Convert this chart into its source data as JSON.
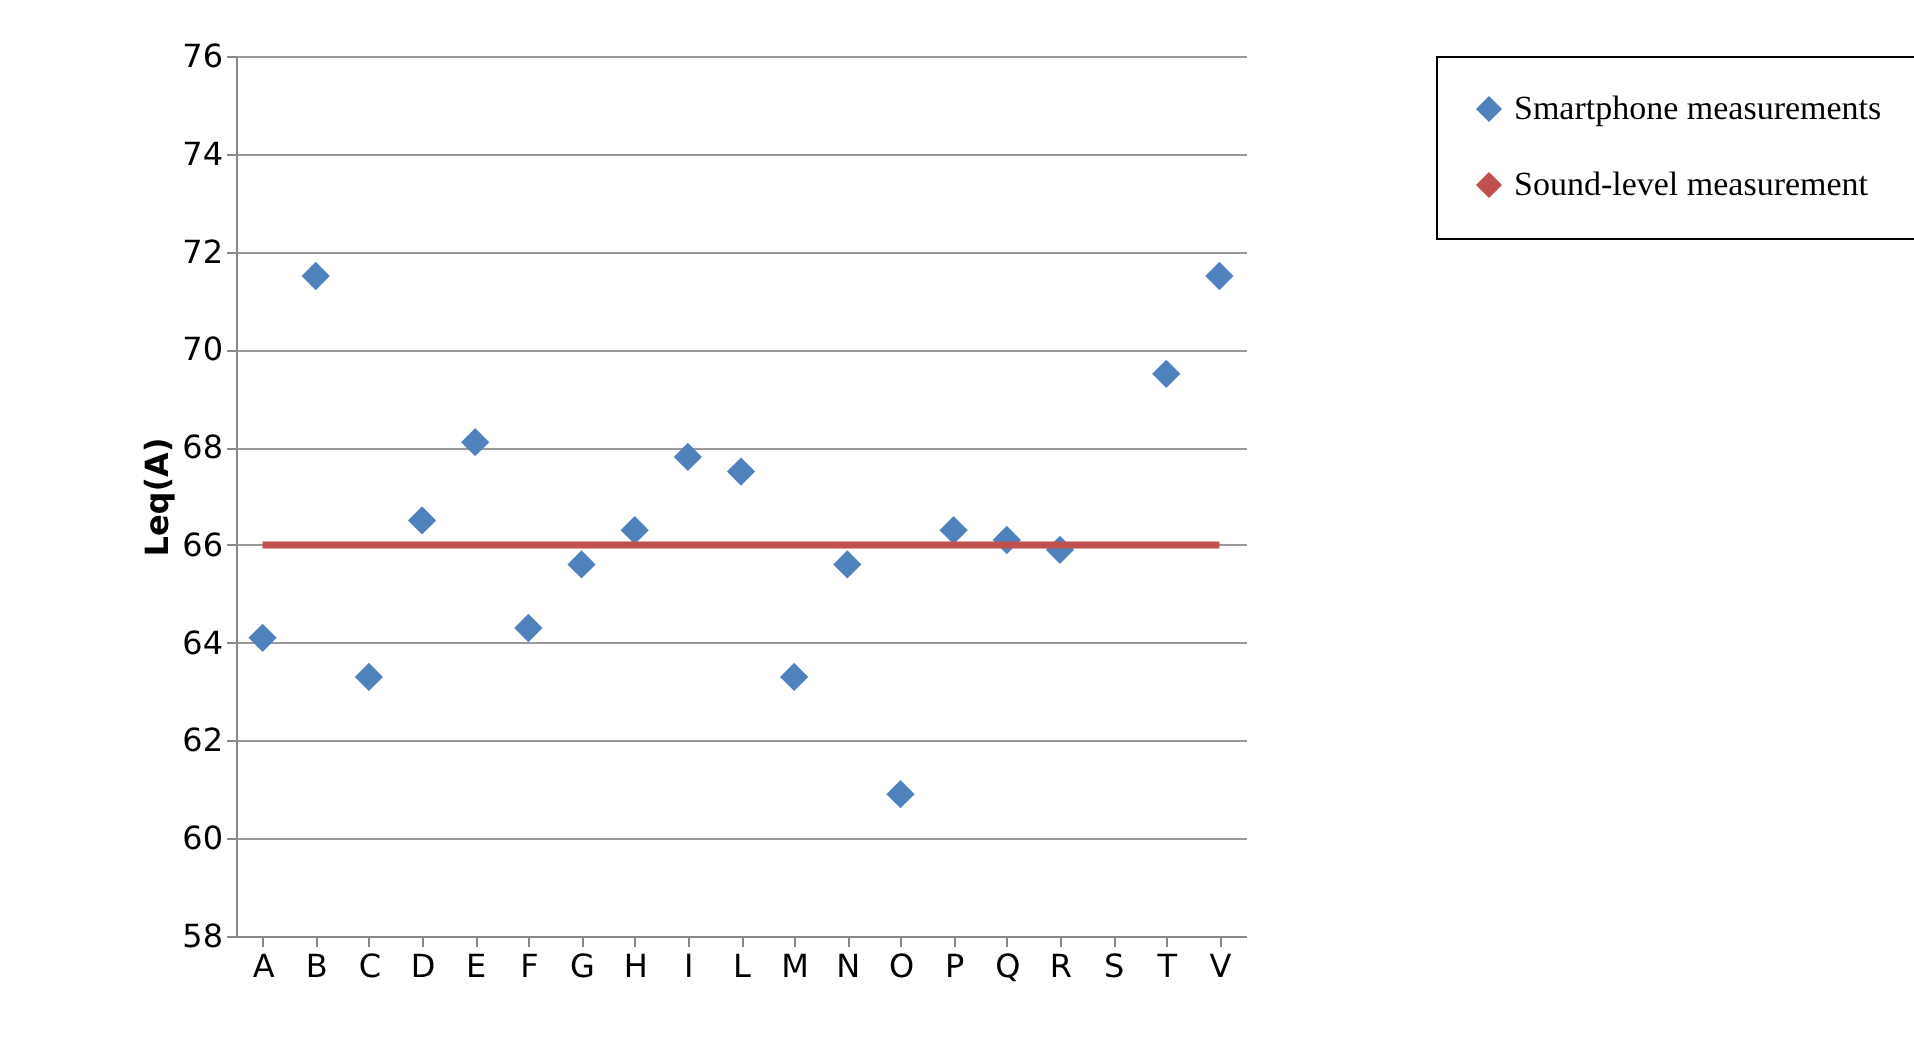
{
  "chart_data": {
    "type": "scatter",
    "ylabel": "Leq(A)",
    "categories": [
      "A",
      "B",
      "C",
      "D",
      "E",
      "F",
      "G",
      "H",
      "I",
      "L",
      "M",
      "N",
      "O",
      "P",
      "Q",
      "R",
      "S",
      "T",
      "V"
    ],
    "series": [
      {
        "name": "Smartphone measurements",
        "color": "#4f81bd",
        "marker": "diamond",
        "values": [
          64.1,
          71.5,
          63.3,
          66.5,
          68.1,
          64.3,
          65.6,
          66.3,
          67.8,
          67.5,
          63.3,
          65.6,
          60.9,
          66.3,
          66.1,
          65.9,
          null,
          69.5,
          71.5
        ]
      },
      {
        "name": "Sound-level measurement",
        "type": "line",
        "color": "#c0504d",
        "values": [
          66,
          66,
          66,
          66,
          66,
          66,
          66,
          66,
          66,
          66,
          66,
          66,
          66,
          66,
          66,
          66,
          66,
          66,
          66
        ]
      }
    ],
    "ylim": [
      58,
      76
    ],
    "yticks": [
      58,
      60,
      62,
      64,
      66,
      68,
      70,
      72,
      74,
      76
    ],
    "grid": "y",
    "legend": "right",
    "line_style": "solid"
  }
}
